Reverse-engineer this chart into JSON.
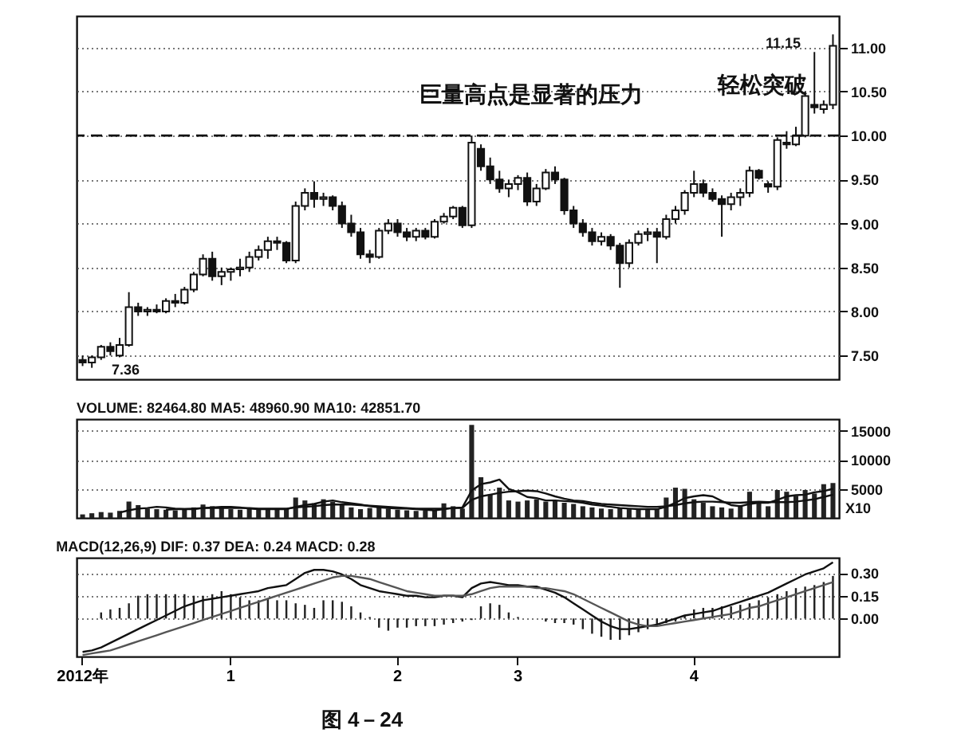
{
  "chart_data": [
    {
      "type": "candlestick",
      "categories": [
        null,
        null,
        null,
        null,
        null,
        null,
        null,
        null,
        null,
        null,
        null,
        null,
        null,
        null,
        null,
        null,
        null,
        null,
        null,
        null,
        null,
        null,
        null,
        null,
        null,
        null,
        null,
        null,
        null,
        null,
        null,
        null,
        null,
        null,
        null,
        null,
        null,
        null,
        null,
        null,
        null,
        null,
        null,
        null,
        null,
        null,
        null,
        null,
        null,
        null,
        null,
        null,
        null,
        null,
        null,
        null,
        null,
        null,
        null,
        null,
        null,
        null,
        null,
        null,
        null,
        null,
        null,
        null,
        null,
        null,
        null,
        null,
        null,
        null,
        null,
        null,
        null,
        null,
        null,
        null,
        null,
        null
      ],
      "ohlc": [
        [
          7.45,
          7.5,
          7.38,
          7.42
        ],
        [
          7.42,
          7.5,
          7.36,
          7.48
        ],
        [
          7.48,
          7.62,
          7.45,
          7.6
        ],
        [
          7.6,
          7.65,
          7.5,
          7.55
        ],
        [
          7.5,
          7.7,
          7.48,
          7.62
        ],
        [
          7.62,
          8.22,
          7.6,
          8.05
        ],
        [
          8.05,
          8.1,
          7.95,
          8.0
        ],
        [
          8.0,
          8.05,
          7.95,
          8.02
        ],
        [
          8.02,
          8.08,
          7.98,
          8.0
        ],
        [
          8.0,
          8.15,
          7.98,
          8.12
        ],
        [
          8.12,
          8.2,
          8.05,
          8.1
        ],
        [
          8.1,
          8.28,
          8.08,
          8.25
        ],
        [
          8.25,
          8.45,
          8.22,
          8.42
        ],
        [
          8.42,
          8.65,
          8.4,
          8.6
        ],
        [
          8.6,
          8.68,
          8.35,
          8.4
        ],
        [
          8.4,
          8.5,
          8.3,
          8.45
        ],
        [
          8.45,
          8.5,
          8.35,
          8.48
        ],
        [
          8.48,
          8.6,
          8.4,
          8.5
        ],
        [
          8.5,
          8.68,
          8.45,
          8.62
        ],
        [
          8.62,
          8.75,
          8.58,
          8.7
        ],
        [
          8.7,
          8.85,
          8.6,
          8.8
        ],
        [
          8.8,
          8.85,
          8.7,
          8.78
        ],
        [
          8.78,
          8.8,
          8.55,
          8.58
        ],
        [
          8.58,
          9.25,
          8.55,
          9.2
        ],
        [
          9.2,
          9.4,
          9.15,
          9.35
        ],
        [
          9.35,
          9.48,
          9.18,
          9.28
        ],
        [
          9.28,
          9.35,
          9.2,
          9.3
        ],
        [
          9.3,
          9.32,
          9.15,
          9.2
        ],
        [
          9.2,
          9.25,
          8.95,
          9.0
        ],
        [
          9.0,
          9.1,
          8.85,
          8.9
        ],
        [
          8.9,
          8.95,
          8.6,
          8.65
        ],
        [
          8.65,
          8.7,
          8.55,
          8.62
        ],
        [
          8.62,
          8.95,
          8.6,
          8.92
        ],
        [
          8.92,
          9.05,
          8.88,
          9.0
        ],
        [
          9.0,
          9.05,
          8.85,
          8.9
        ],
        [
          8.9,
          8.95,
          8.8,
          8.85
        ],
        [
          8.85,
          8.95,
          8.8,
          8.92
        ],
        [
          8.92,
          8.95,
          8.82,
          8.85
        ],
        [
          8.85,
          9.05,
          8.83,
          9.02
        ],
        [
          9.02,
          9.12,
          9.0,
          9.08
        ],
        [
          9.08,
          9.2,
          9.05,
          9.18
        ],
        [
          9.18,
          9.2,
          8.95,
          8.98
        ],
        [
          8.98,
          10.0,
          8.95,
          9.92
        ],
        [
          9.85,
          9.9,
          9.6,
          9.65
        ],
        [
          9.65,
          9.75,
          9.45,
          9.5
        ],
        [
          9.5,
          9.6,
          9.35,
          9.4
        ],
        [
          9.4,
          9.5,
          9.3,
          9.45
        ],
        [
          9.45,
          9.55,
          9.38,
          9.52
        ],
        [
          9.52,
          9.58,
          9.2,
          9.25
        ],
        [
          9.25,
          9.45,
          9.2,
          9.4
        ],
        [
          9.4,
          9.62,
          9.38,
          9.58
        ],
        [
          9.58,
          9.65,
          9.45,
          9.5
        ],
        [
          9.5,
          9.52,
          9.1,
          9.15
        ],
        [
          9.15,
          9.2,
          8.95,
          9.0
        ],
        [
          9.0,
          9.05,
          8.85,
          8.9
        ],
        [
          8.9,
          8.95,
          8.75,
          8.8
        ],
        [
          8.8,
          8.9,
          8.75,
          8.85
        ],
        [
          8.85,
          8.88,
          8.7,
          8.75
        ],
        [
          8.75,
          8.78,
          8.27,
          8.55
        ],
        [
          8.55,
          8.82,
          8.5,
          8.78
        ],
        [
          8.78,
          8.92,
          8.75,
          8.88
        ],
        [
          8.88,
          8.95,
          8.8,
          8.9
        ],
        [
          8.9,
          8.95,
          8.55,
          8.85
        ],
        [
          8.85,
          9.1,
          8.82,
          9.05
        ],
        [
          9.05,
          9.2,
          9.0,
          9.15
        ],
        [
          9.15,
          9.38,
          9.1,
          9.35
        ],
        [
          9.35,
          9.6,
          9.3,
          9.45
        ],
        [
          9.45,
          9.5,
          9.3,
          9.35
        ],
        [
          9.35,
          9.4,
          9.25,
          9.28
        ],
        [
          9.28,
          9.32,
          8.85,
          9.22
        ],
        [
          9.22,
          9.35,
          9.15,
          9.3
        ],
        [
          9.3,
          9.4,
          9.2,
          9.35
        ],
        [
          9.35,
          9.65,
          9.3,
          9.6
        ],
        [
          9.6,
          9.62,
          9.5,
          9.52
        ],
        [
          9.45,
          9.48,
          9.35,
          9.42
        ],
        [
          9.42,
          9.98,
          9.38,
          9.95
        ],
        [
          9.92,
          10.05,
          9.85,
          9.9
        ],
        [
          9.9,
          10.1,
          9.88,
          10.0
        ],
        [
          10.0,
          10.5,
          9.98,
          10.45
        ],
        [
          10.35,
          10.95,
          10.25,
          10.32
        ],
        [
          10.3,
          10.4,
          10.25,
          10.35
        ],
        [
          10.35,
          11.15,
          10.3,
          11.02
        ]
      ],
      "ylim": [
        7.23,
        11.36
      ],
      "yticks": [
        {
          "value": 7.5,
          "label": "7.50"
        },
        {
          "value": 8,
          "label": "8.00"
        },
        {
          "value": 8.5,
          "label": "8.50"
        },
        {
          "value": 9,
          "label": "9.00"
        },
        {
          "value": 9.5,
          "label": "9.50"
        },
        {
          "value": 10,
          "label": "10.00"
        },
        {
          "value": 10.5,
          "label": "10.50"
        },
        {
          "value": 11,
          "label": "11.00"
        }
      ],
      "grid": "y",
      "tick_labels": "y",
      "ref_lines": [
        {
          "axis": "y",
          "value": 10,
          "line_style": "dashed",
          "color": "#111111"
        }
      ],
      "annotations": [
        "巨量高点是显著的压力",
        "轻松突破",
        "11.15",
        "7.36"
      ]
    },
    {
      "type": "bar",
      "title": "VOLUME: 82464.80 MA5: 48960.90 MA10: 42851.70",
      "categories": [
        null,
        null,
        null,
        null,
        null,
        null,
        null,
        null,
        null,
        null,
        null,
        null,
        null,
        null,
        null,
        null,
        null,
        null,
        null,
        null,
        null,
        null,
        null,
        null,
        null,
        null,
        null,
        null,
        null,
        null,
        null,
        null,
        null,
        null,
        null,
        null,
        null,
        null,
        null,
        null,
        null,
        null,
        null,
        null,
        null,
        null,
        null,
        null,
        null,
        null,
        null,
        null,
        null,
        null,
        null,
        null,
        null,
        null,
        null,
        null,
        null,
        null,
        null,
        null,
        null,
        null,
        null,
        null,
        null,
        null,
        null,
        null,
        null,
        null,
        null,
        null,
        null,
        null,
        null,
        null,
        null,
        null
      ],
      "series": [
        {
          "type": "bar",
          "color": "#222222",
          "values": [
            600,
            800,
            1000,
            900,
            1200,
            2800,
            2200,
            1600,
            1500,
            1400,
            1300,
            1500,
            1800,
            2300,
            2000,
            1700,
            1500,
            1400,
            1600,
            1500,
            1400,
            1500,
            1600,
            3500,
            3000,
            2500,
            3200,
            2800,
            2200,
            1800,
            1500,
            1700,
            1900,
            1600,
            1400,
            1300,
            1200,
            1300,
            1400,
            2500,
            2000,
            1600,
            16000,
            7000,
            4000,
            5200,
            3000,
            2800,
            3000,
            3200,
            2800,
            3000,
            2600,
            2400,
            2000,
            1800,
            1600,
            1500,
            1700,
            1500,
            1400,
            1500,
            1600,
            3500,
            5200,
            5000,
            3200,
            2600,
            2000,
            1800,
            1600,
            2200,
            4500,
            2800,
            2000,
            4800,
            4500,
            3800,
            4800,
            4200,
            5800,
            6000
          ]
        },
        {
          "type": "line",
          "color": "#111111",
          "values": [
            null,
            null,
            null,
            null,
            900,
            1300,
            1600,
            1700,
            1900,
            1800,
            1600,
            1500,
            1500,
            1700,
            1800,
            1900,
            1900,
            1800,
            1600,
            1500,
            1500,
            1500,
            1500,
            1900,
            2200,
            2400,
            2800,
            3000,
            2700,
            2500,
            2300,
            2000,
            1800,
            1700,
            1600,
            1600,
            1500,
            1400,
            1300,
            1500,
            1700,
            1800,
            4700,
            5800,
            6100,
            6600,
            5000,
            4400,
            3600,
            3400,
            3000,
            3000,
            2900,
            2800,
            2600,
            2300,
            2100,
            1900,
            1700,
            1600,
            1500,
            1500,
            1500,
            1900,
            2600,
            3400,
            3700,
            3900,
            3700,
            2900,
            2200,
            2000,
            2400,
            2600,
            2600,
            3100,
            3700,
            3900,
            4000,
            4400,
            4600,
            5000
          ]
        },
        {
          "type": "line",
          "color": "#111111",
          "values": [
            null,
            null,
            null,
            null,
            null,
            null,
            null,
            null,
            null,
            1400,
            1500,
            1500,
            1600,
            1700,
            1700,
            1700,
            1700,
            1700,
            1700,
            1600,
            1600,
            1600,
            1600,
            1800,
            1900,
            2000,
            2200,
            2300,
            2300,
            2300,
            2200,
            2100,
            2000,
            1900,
            1800,
            1700,
            1600,
            1600,
            1600,
            1600,
            1700,
            1700,
            3100,
            3700,
            4000,
            4300,
            4500,
            4600,
            4700,
            4600,
            4200,
            3700,
            3300,
            3000,
            2900,
            2600,
            2400,
            2300,
            2200,
            2100,
            2000,
            1900,
            1900,
            2000,
            2200,
            2500,
            2700,
            2800,
            2800,
            2700,
            2600,
            2600,
            2700,
            2800,
            2700,
            2700,
            2700,
            2800,
            3000,
            3200,
            3600,
            4000
          ]
        }
      ],
      "ylim": [
        0,
        17000
      ],
      "yticks": [
        5000,
        10000,
        15000
      ],
      "grid": "y",
      "tick_labels": "y",
      "annotations": [
        "X10"
      ]
    },
    {
      "type": "bar",
      "title": "MACD(12,26,9) DIF: 0.37 DEA: 0.24 MACD: 0.28",
      "categories": [
        "2012年",
        null,
        null,
        null,
        null,
        null,
        null,
        null,
        null,
        null,
        null,
        null,
        null,
        null,
        null,
        null,
        "1",
        null,
        null,
        null,
        null,
        null,
        null,
        null,
        null,
        null,
        null,
        null,
        null,
        null,
        null,
        null,
        null,
        null,
        "2",
        null,
        null,
        null,
        null,
        null,
        null,
        null,
        null,
        null,
        null,
        null,
        null,
        "3",
        null,
        null,
        null,
        null,
        null,
        null,
        null,
        null,
        null,
        null,
        null,
        null,
        null,
        null,
        null,
        null,
        null,
        null,
        "4",
        null,
        null,
        null,
        null,
        null,
        null,
        null,
        null,
        null,
        null,
        null,
        null,
        null,
        null,
        null
      ],
      "series": [
        {
          "type": "bar",
          "color": "#222222",
          "values": [
            null,
            null,
            0.04,
            0.06,
            0.07,
            0.1,
            0.15,
            0.16,
            0.16,
            0.16,
            0.16,
            0.16,
            0.15,
            0.15,
            0.16,
            0.18,
            0.16,
            0.14,
            0.12,
            0.12,
            0.13,
            0.12,
            0.12,
            0.1,
            0.09,
            0.07,
            0.12,
            0.12,
            0.11,
            0.08,
            0.04,
            0.01,
            -0.06,
            -0.08,
            -0.06,
            -0.06,
            -0.05,
            -0.05,
            -0.05,
            -0.04,
            -0.03,
            -0.02,
            -0.01,
            0.08,
            0.1,
            0.09,
            0.04,
            0.01,
            0,
            0,
            -0.02,
            -0.03,
            -0.03,
            -0.04,
            -0.07,
            -0.1,
            -0.12,
            -0.14,
            -0.14,
            -0.11,
            -0.09,
            -0.07,
            -0.05,
            -0.03,
            -0.02,
            0.02,
            0.06,
            0.07,
            0.07,
            0.08,
            0.08,
            0.09,
            0.1,
            0.12,
            0.14,
            0.16,
            0.18,
            0.2,
            0.21,
            0.22,
            0.24,
            0.28
          ]
        },
        {
          "type": "line",
          "color": "#111111",
          "values": [
            -0.22,
            -0.21,
            -0.19,
            -0.16,
            -0.13,
            -0.1,
            -0.07,
            -0.04,
            -0.01,
            0.02,
            0.05,
            0.08,
            0.1,
            0.12,
            0.13,
            0.14,
            0.15,
            0.16,
            0.17,
            0.18,
            0.2,
            0.21,
            0.22,
            0.26,
            0.3,
            0.32,
            0.32,
            0.31,
            0.29,
            0.26,
            0.22,
            0.2,
            0.18,
            0.17,
            0.16,
            0.15,
            0.15,
            0.14,
            0.14,
            0.15,
            0.15,
            0.14,
            0.2,
            0.23,
            0.24,
            0.23,
            0.22,
            0.22,
            0.21,
            0.21,
            0.19,
            0.17,
            0.14,
            0.1,
            0.06,
            0.02,
            -0.02,
            -0.05,
            -0.07,
            -0.07,
            -0.06,
            -0.05,
            -0.04,
            -0.02,
            0,
            0.02,
            0.03,
            0.04,
            0.05,
            0.07,
            0.09,
            0.11,
            0.13,
            0.15,
            0.17,
            0.2,
            0.23,
            0.26,
            0.29,
            0.31,
            0.33,
            0.37
          ]
        },
        {
          "type": "line",
          "color": "#555555",
          "values": [
            -0.24,
            -0.23,
            -0.22,
            -0.21,
            -0.19,
            -0.17,
            -0.15,
            -0.13,
            -0.11,
            -0.09,
            -0.07,
            -0.05,
            -0.03,
            -0.01,
            0.01,
            0.03,
            0.05,
            0.07,
            0.09,
            0.11,
            0.13,
            0.15,
            0.17,
            0.19,
            0.21,
            0.23,
            0.25,
            0.27,
            0.28,
            0.28,
            0.27,
            0.26,
            0.24,
            0.22,
            0.2,
            0.18,
            0.17,
            0.16,
            0.15,
            0.15,
            0.15,
            0.15,
            0.16,
            0.18,
            0.2,
            0.21,
            0.21,
            0.21,
            0.21,
            0.2,
            0.2,
            0.19,
            0.18,
            0.16,
            0.13,
            0.1,
            0.07,
            0.04,
            0.01,
            -0.02,
            -0.04,
            -0.05,
            -0.05,
            -0.04,
            -0.03,
            -0.02,
            -0.01,
            0,
            0.01,
            0.02,
            0.03,
            0.05,
            0.07,
            0.08,
            0.1,
            0.12,
            0.14,
            0.16,
            0.18,
            0.2,
            0.22,
            0.24
          ]
        }
      ],
      "ylim": [
        -0.25,
        0.4
      ],
      "yticks": [
        {
          "value": 0,
          "label": "0.00"
        },
        {
          "value": 0.15,
          "label": "0.15"
        },
        {
          "value": 0.3,
          "label": "0.30"
        }
      ],
      "grid": "y",
      "annotations": [
        "图 4－24"
      ]
    }
  ]
}
